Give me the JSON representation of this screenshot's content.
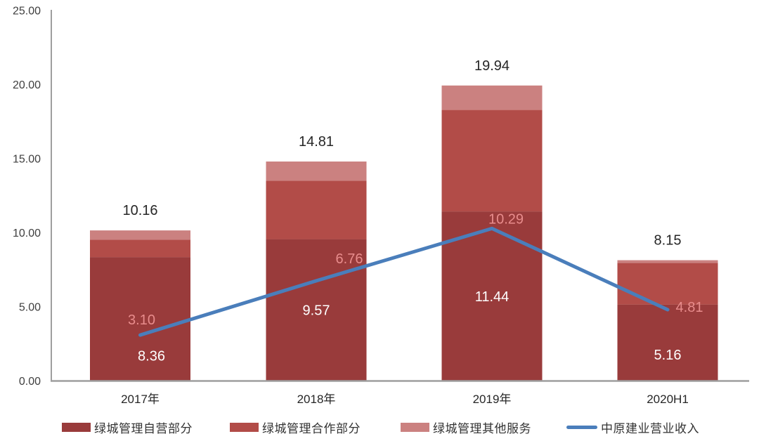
{
  "chart_data": {
    "type": "bar",
    "subtype": "stacked-bars-with-line-overlay",
    "title": "",
    "categories": [
      "2017年",
      "2018年",
      "2019年",
      "2020H1"
    ],
    "series": [
      {
        "name": "绿城管理自营部分",
        "type": "bar",
        "color": "#993B3B",
        "values": [
          8.36,
          9.57,
          11.44,
          5.16
        ],
        "data_labels": [
          "8.36",
          "9.57",
          "11.44",
          "5.16"
        ],
        "label_color": "#FFFFFF"
      },
      {
        "name": "绿城管理合作部分",
        "type": "bar",
        "color": "#B24C48",
        "values": [
          1.18,
          3.95,
          6.85,
          2.8
        ],
        "values_estimated_from_pixels": true,
        "data_labels": [
          "",
          "",
          "",
          ""
        ]
      },
      {
        "name": "绿城管理其他服务",
        "type": "bar",
        "color": "#CB8180",
        "values": [
          0.62,
          1.29,
          1.65,
          0.19
        ],
        "values_estimated_from_pixels": true,
        "data_labels": [
          "",
          "",
          "",
          ""
        ]
      },
      {
        "name": "中原建业营业收入",
        "type": "line",
        "color": "#4A7EBB",
        "values": [
          3.1,
          6.76,
          10.29,
          4.81
        ],
        "data_labels": [
          "3.10",
          "6.76",
          "10.29",
          "4.81"
        ],
        "label_color": "#E88C8C"
      }
    ],
    "stack_total_labels": [
      "10.16",
      "14.81",
      "19.94",
      "8.15"
    ],
    "stack_totals": [
      10.16,
      14.81,
      19.94,
      8.15
    ],
    "y_axis": {
      "min": 0,
      "max": 25,
      "step": 5,
      "tick_labels": [
        "0.00",
        "5.00",
        "10.00",
        "15.00",
        "20.00",
        "25.00"
      ]
    },
    "grid": false,
    "legend_position": "bottom"
  },
  "legend": {
    "items": [
      {
        "label": "绿城管理自营部分",
        "swatch": "rect",
        "color": "#993B3B"
      },
      {
        "label": "绿城管理合作部分",
        "swatch": "rect",
        "color": "#B24C48"
      },
      {
        "label": "绿城管理其他服务",
        "swatch": "rect",
        "color": "#CB8180"
      },
      {
        "label": "中原建业营业收入",
        "swatch": "line",
        "color": "#4A7EBB"
      }
    ]
  },
  "colors": {
    "background": "#FFFFFF",
    "axis_line": "#9E9E9E",
    "tick_text": "#3F3F3F",
    "category_text": "#262626",
    "total_label_text": "#262626",
    "bar_inner_label_text": "#FFFFFF",
    "line_label_text": "#E88C8C"
  }
}
